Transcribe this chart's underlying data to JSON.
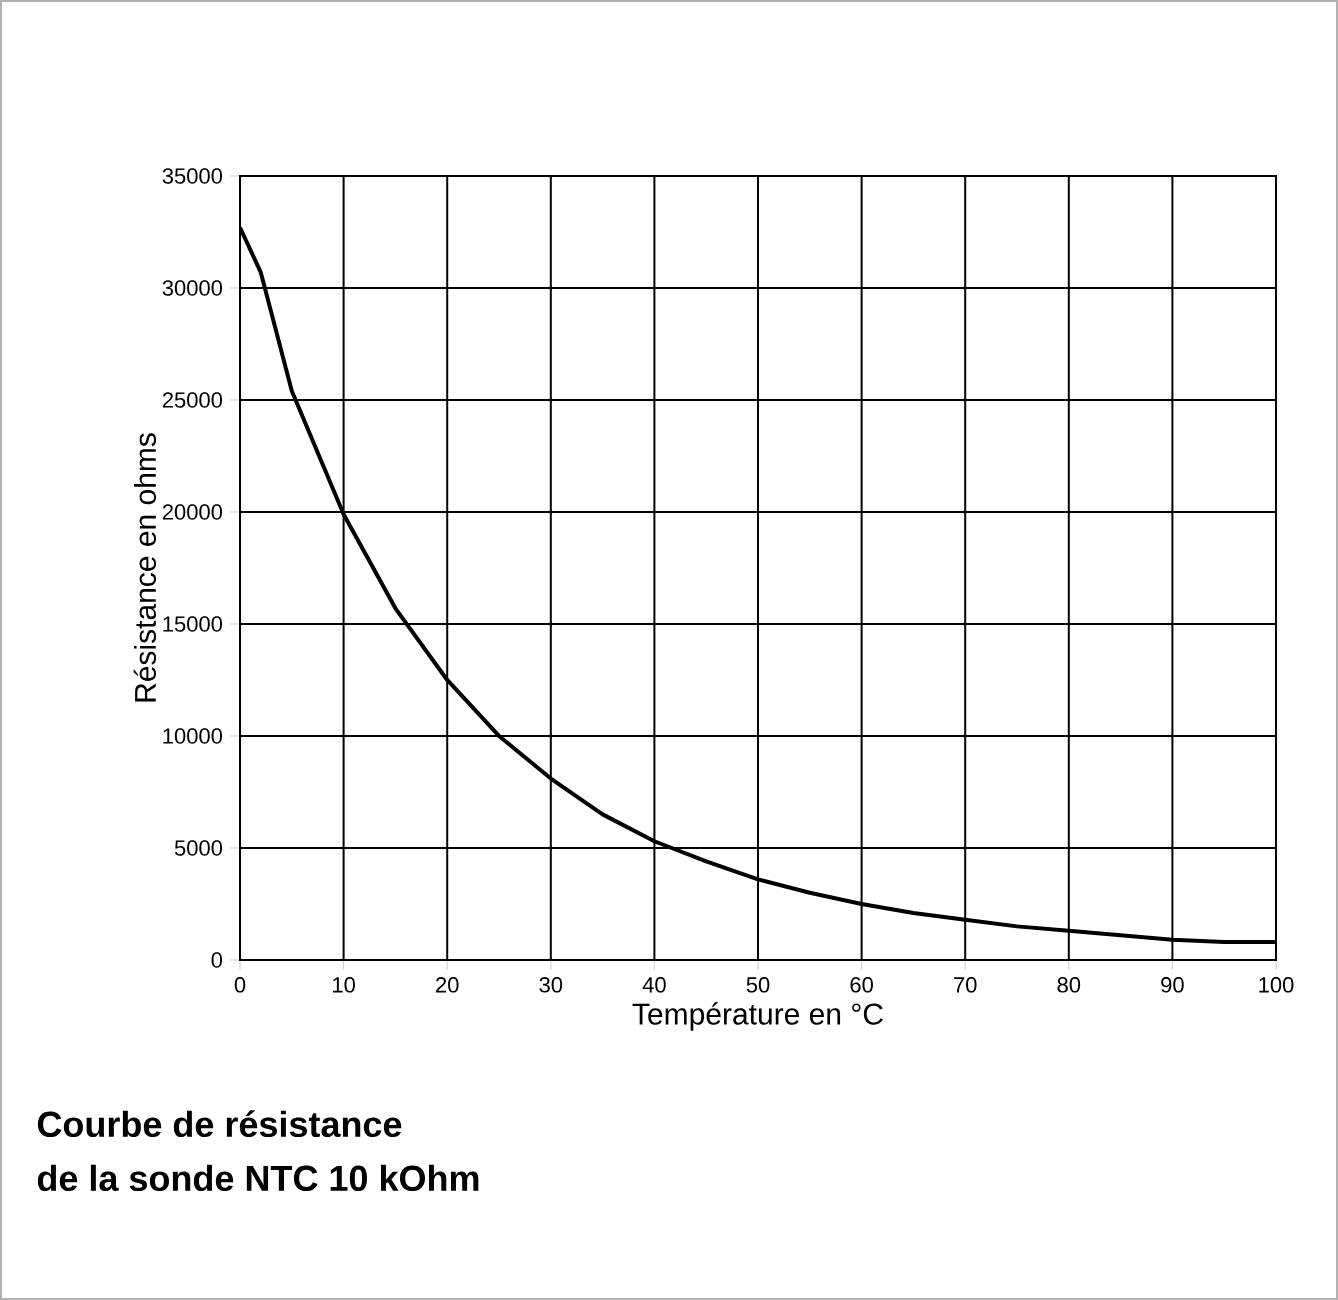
{
  "chart_data": {
    "type": "line",
    "title": "Courbe de résistance\nde la sonde NTC 10 kOhm",
    "xlabel": "Température en °C",
    "ylabel": "Résistance en ohms",
    "x": [
      0,
      2,
      5,
      10,
      15,
      20,
      25,
      30,
      35,
      40,
      45,
      50,
      55,
      60,
      65,
      70,
      75,
      80,
      85,
      90,
      95,
      100
    ],
    "series": [
      {
        "color": "#000000",
        "values": [
          32700,
          30700,
          25400,
          19900,
          15700,
          12500,
          10000,
          8100,
          6500,
          5300,
          4400,
          3600,
          3000,
          2500,
          2100,
          1800,
          1500,
          1300,
          1100,
          900,
          800,
          800
        ]
      }
    ],
    "xlim": [
      0,
      100
    ],
    "xticks": [
      0,
      10,
      20,
      30,
      40,
      50,
      60,
      70,
      80,
      90,
      100
    ],
    "ylim": [
      0,
      35000
    ],
    "yticks": [
      0,
      5000,
      10000,
      15000,
      20000,
      25000,
      30000,
      35000
    ],
    "grid": true,
    "marker": "none",
    "line_style": "solid"
  }
}
